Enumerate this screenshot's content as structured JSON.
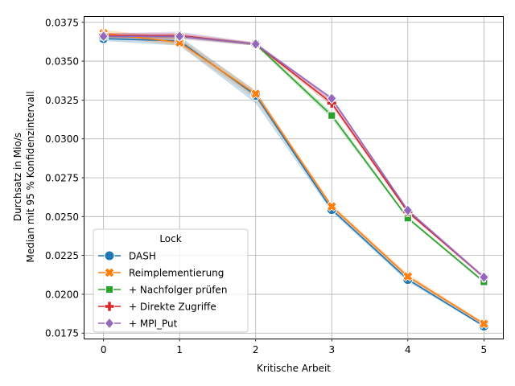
{
  "chart_data": {
    "type": "line",
    "title": "",
    "xlabel": "Kritische Arbeit",
    "ylabel": [
      "Durchsatz in Mio/s",
      "Median mit 95 % Konfidenzintervall"
    ],
    "x": [
      0,
      1,
      2,
      3,
      4,
      5
    ],
    "xlim": [
      -0.25,
      5.25
    ],
    "ylim": [
      0.01715,
      0.03785
    ],
    "yticks": [
      "0.0175",
      "0.0200",
      "0.0225",
      "0.0250",
      "0.0275",
      "0.0300",
      "0.0325",
      "0.0350",
      "0.0375"
    ],
    "xticks": [
      "0",
      "1",
      "2",
      "3",
      "4",
      "5"
    ],
    "grid": true,
    "legend": {
      "title": "Lock",
      "placement": "lower-left"
    },
    "series": [
      {
        "name": "DASH",
        "color": "#1f77b4",
        "marker": "circle",
        "values": [
          0.03645,
          0.0363,
          0.0328,
          0.02545,
          0.02095,
          0.01795
        ],
        "ci_low": [
          0.0363,
          0.036,
          0.0323,
          0.0253,
          0.0208,
          0.0179
        ],
        "ci_high": [
          0.0366,
          0.0366,
          0.0331,
          0.0256,
          0.0211,
          0.0181
        ]
      },
      {
        "name": "Reimplementierung",
        "color": "#ff7f0e",
        "marker": "x-filled",
        "values": [
          0.0368,
          0.0362,
          0.0329,
          0.02565,
          0.02115,
          0.0181
        ],
        "ci_low": [
          0.0366,
          0.036,
          0.0326,
          0.0255,
          0.021,
          0.018
        ],
        "ci_high": [
          0.037,
          0.0365,
          0.0331,
          0.0258,
          0.0213,
          0.0182
        ]
      },
      {
        "name": "+ Nachfolger prüfen",
        "color": "#2ca02c",
        "marker": "square",
        "values": [
          0.0366,
          0.0366,
          0.0361,
          0.0315,
          0.0249,
          0.0208
        ],
        "ci_low": [
          0.0365,
          0.0365,
          0.036,
          0.0313,
          0.0248,
          0.0207
        ],
        "ci_high": [
          0.0367,
          0.0367,
          0.0362,
          0.0317,
          0.025,
          0.0209
        ]
      },
      {
        "name": "+ Direkte Zugriffe",
        "color": "#d62728",
        "marker": "plus-filled",
        "values": [
          0.03665,
          0.03665,
          0.0361,
          0.0323,
          0.0253,
          0.0211
        ],
        "ci_low": [
          0.0365,
          0.0365,
          0.036,
          0.0321,
          0.0252,
          0.021
        ],
        "ci_high": [
          0.0368,
          0.0368,
          0.0362,
          0.0325,
          0.0254,
          0.0212
        ]
      },
      {
        "name": "+ MPI_Put",
        "color": "#9467bd",
        "marker": "diamond",
        "values": [
          0.0366,
          0.0366,
          0.0361,
          0.0326,
          0.0254,
          0.0211
        ],
        "ci_low": [
          0.0364,
          0.0364,
          0.036,
          0.0324,
          0.0253,
          0.021
        ],
        "ci_high": [
          0.0368,
          0.0369,
          0.0362,
          0.0327,
          0.0255,
          0.0212
        ]
      }
    ]
  }
}
